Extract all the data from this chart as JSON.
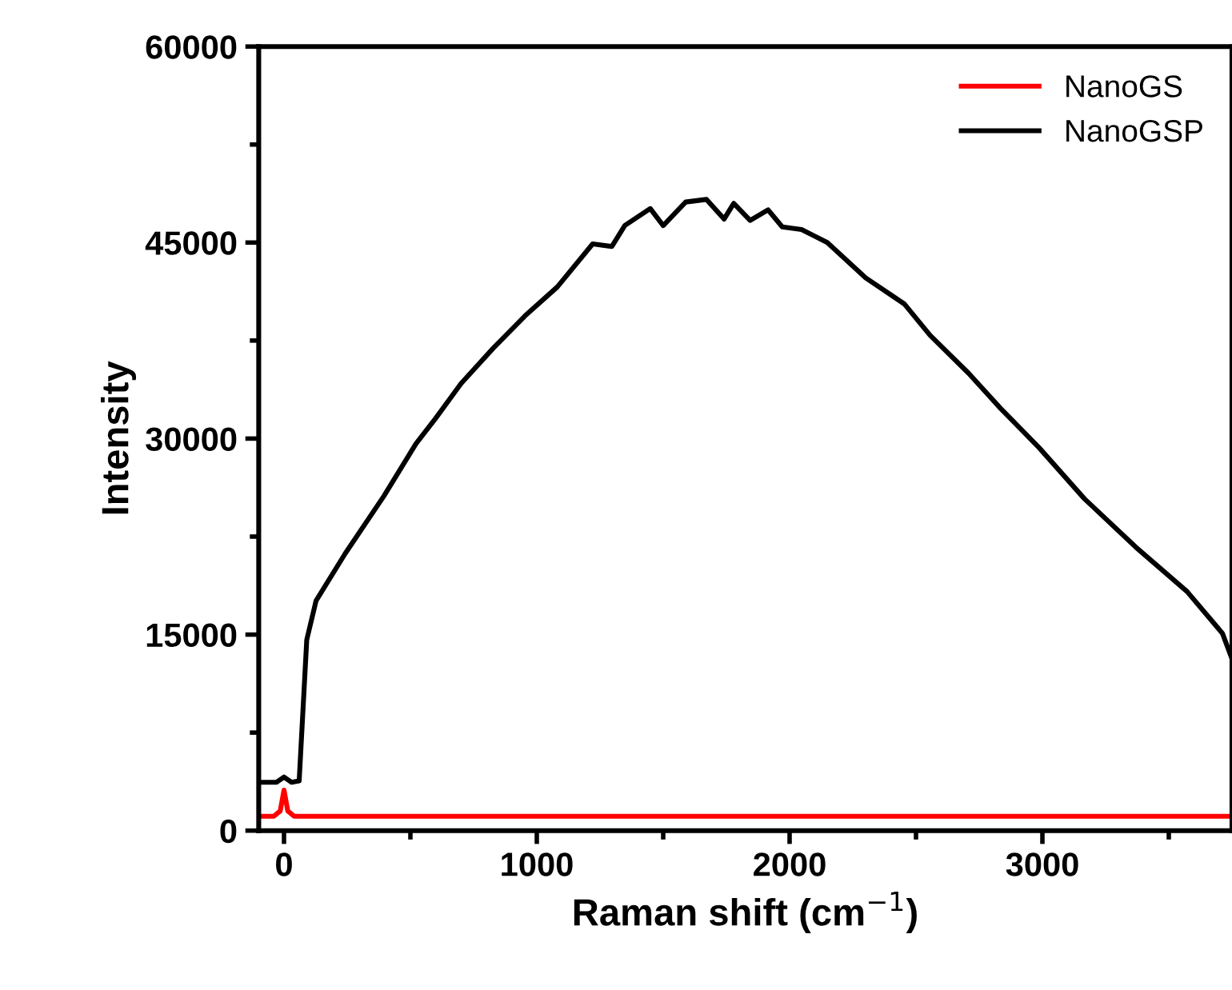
{
  "chart_data": {
    "type": "line",
    "xlabel": "Raman shift (cm$^{−1}$)",
    "ylabel": "Intensity",
    "xlim": [
      -100,
      3750
    ],
    "xticks": [
      0,
      1000,
      2000,
      3000
    ],
    "ylim": [
      0,
      60000
    ],
    "yticks": [
      0,
      15000,
      30000,
      45000,
      60000
    ],
    "grid": false,
    "legend": "top right",
    "line_style": "solid",
    "marker": "none",
    "series": [
      {
        "name": "NanoGS",
        "color": "#ff0000",
        "x": [
          -100,
          -40,
          -15,
          0,
          15,
          40,
          100,
          500,
          1000,
          2000,
          3000,
          3750
        ],
        "values": [
          1100,
          1100,
          1500,
          3100,
          1500,
          1100,
          1100,
          1100,
          1100,
          1100,
          1100,
          1100
        ]
      },
      {
        "name": "NanoGSP",
        "color": "#000000",
        "x": [
          -100,
          -30,
          0,
          30,
          60,
          90,
          127,
          242,
          395,
          522,
          598,
          700,
          827,
          954,
          1081,
          1221,
          1297,
          1348,
          1449,
          1500,
          1589,
          1671,
          1741,
          1779,
          1844,
          1915,
          1971,
          2047,
          2149,
          2301,
          2454,
          2556,
          2708,
          2835,
          2987,
          3166,
          3369,
          3572,
          3712,
          3747
        ],
        "values": [
          3700,
          3700,
          4100,
          3700,
          3800,
          14600,
          17600,
          21200,
          25600,
          29600,
          31500,
          34200,
          36900,
          39400,
          41600,
          44900,
          44700,
          46300,
          47600,
          46300,
          48100,
          48300,
          46800,
          48000,
          46700,
          47500,
          46200,
          46000,
          45000,
          42300,
          40300,
          37900,
          35000,
          32300,
          29300,
          25400,
          21700,
          18300,
          15100,
          13300
        ]
      }
    ]
  }
}
